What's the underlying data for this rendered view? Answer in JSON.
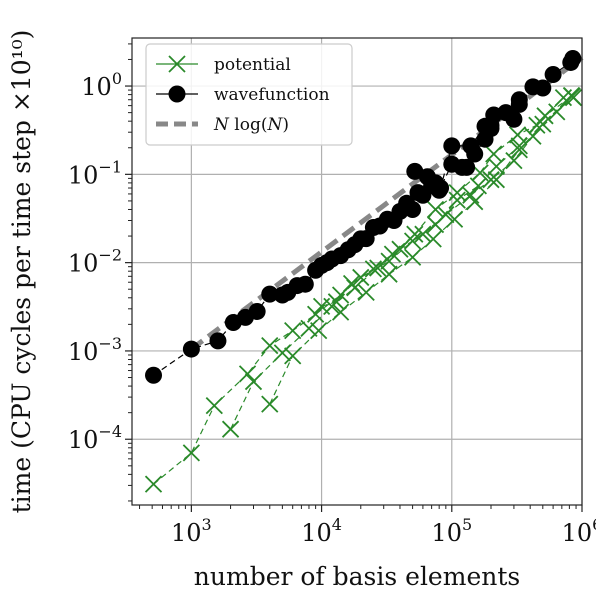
{
  "chart_data": {
    "type": "scatter",
    "xlabel": "number of basis elements",
    "ylabel": "time (CPU cycles per time step ×10¹⁰)",
    "x_scale": "log",
    "y_scale": "log",
    "xlim": [
      350,
      1000000
    ],
    "ylim": [
      1.8e-05,
      3.5
    ],
    "grid": true,
    "legend_position": "top-left",
    "x_ticks": [
      {
        "value": 1000,
        "base": "10",
        "exp": "3"
      },
      {
        "value": 10000,
        "base": "10",
        "exp": "4"
      },
      {
        "value": 100000,
        "base": "10",
        "exp": "5"
      },
      {
        "value": 1000000,
        "base": "10",
        "exp": "6"
      }
    ],
    "y_ticks": [
      {
        "value": 0.0001,
        "base": "10",
        "exp": "−4"
      },
      {
        "value": 0.001,
        "base": "10",
        "exp": "−3"
      },
      {
        "value": 0.01,
        "base": "10",
        "exp": "−2"
      },
      {
        "value": 0.1,
        "base": "10",
        "exp": "−1"
      },
      {
        "value": 1,
        "base": "10",
        "exp": "0"
      }
    ],
    "colors": {
      "potential": "#2a8a2a",
      "wavefunction": "#000000",
      "nlogn": "#888888",
      "grid": "#b0b0b0"
    },
    "series": [
      {
        "name": "potential",
        "marker": "x",
        "line": "dashed",
        "chains": [
          [
            [
              512,
              3.1e-05
            ],
            [
              1000,
              7e-05
            ],
            [
              1500,
              0.00024
            ],
            [
              2700,
              0.00055
            ],
            [
              4000,
              0.00115
            ],
            [
              6000,
              0.0017
            ],
            [
              9000,
              0.0026
            ],
            [
              14000,
              0.0043
            ],
            [
              20000,
              0.0068
            ],
            [
              33000,
              0.0104
            ],
            [
              50000,
              0.0176
            ],
            [
              75000,
              0.027
            ],
            [
              110000,
              0.051
            ],
            [
              160000,
              0.074
            ],
            [
              220000,
              0.123
            ],
            [
              330000,
              0.21
            ],
            [
              520000,
              0.46
            ],
            [
              840000,
              0.77
            ]
          ],
          [
            [
              2000,
              0.00013
            ],
            [
              3000,
              0.00045
            ],
            [
              5000,
              0.00095
            ],
            [
              8000,
              0.0018
            ],
            [
              12000,
              0.0032
            ],
            [
              18000,
              0.0052
            ],
            [
              27000,
              0.0087
            ],
            [
              40000,
              0.0142
            ],
            [
              60000,
              0.021
            ],
            [
              90000,
              0.035
            ],
            [
              140000,
              0.058
            ],
            [
              200000,
              0.087
            ],
            [
              300000,
              0.143
            ],
            [
              420000,
              0.27
            ],
            [
              640000,
              0.51
            ],
            [
              860000,
              0.74
            ]
          ],
          [
            [
              4000,
              0.00025
            ],
            [
              6000,
              0.00088
            ],
            [
              9500,
              0.0017
            ],
            [
              14000,
              0.00275
            ],
            [
              22000,
              0.0046
            ],
            [
              33000,
              0.0074
            ],
            [
              50000,
              0.0115
            ],
            [
              72000,
              0.0185
            ],
            [
              105000,
              0.031
            ],
            [
              150000,
              0.049
            ],
            [
              220000,
              0.087
            ],
            [
              330000,
              0.19
            ],
            [
              500000,
              0.37
            ],
            [
              830000,
              0.78
            ]
          ],
          [
            [
              10000,
              0.0032
            ],
            [
              13000,
              0.0036
            ],
            [
              17000,
              0.0058
            ],
            [
              25000,
              0.0085
            ],
            [
              35000,
              0.0125
            ],
            [
              52000,
              0.021
            ],
            [
              75000,
              0.04
            ],
            [
              110000,
              0.062
            ],
            [
              165000,
              0.104
            ],
            [
              210000,
              0.17
            ],
            [
              320000,
              0.28
            ],
            [
              450000,
              0.36
            ],
            [
              720000,
              0.74
            ]
          ]
        ]
      },
      {
        "name": "wavefunction",
        "marker": "circle",
        "line": "dashed",
        "chains": [
          [
            [
              512,
              0.00053
            ],
            [
              1000,
              0.00105
            ],
            [
              1600,
              0.0013
            ],
            [
              2100,
              0.0021
            ],
            [
              2600,
              0.0024
            ],
            [
              3200,
              0.0028
            ],
            [
              4000,
              0.0044
            ],
            [
              5000,
              0.0043
            ],
            [
              5500,
              0.0046
            ],
            [
              6500,
              0.0055
            ],
            [
              7500,
              0.0057
            ],
            [
              9000,
              0.0082
            ],
            [
              10000,
              0.0093
            ],
            [
              11000,
              0.01
            ],
            [
              12000,
              0.011
            ],
            [
              14000,
              0.012
            ],
            [
              16000,
              0.014
            ],
            [
              18000,
              0.016
            ],
            [
              20000,
              0.0186
            ],
            [
              22000,
              0.0187
            ],
            [
              25000,
              0.025
            ],
            [
              28000,
              0.026
            ],
            [
              32000,
              0.031
            ],
            [
              36000,
              0.03
            ],
            [
              40000,
              0.038
            ],
            [
              45000,
              0.047
            ],
            [
              50000,
              0.04
            ],
            [
              55000,
              0.062
            ],
            [
              60000,
              0.058
            ],
            [
              70000,
              0.074
            ],
            [
              80000,
              0.066
            ],
            [
              100000,
              0.13
            ],
            [
              120000,
              0.12
            ],
            [
              130000,
              0.12
            ],
            [
              150000,
              0.17
            ],
            [
              180000,
              0.25
            ],
            [
              200000,
              0.33
            ],
            [
              210000,
              0.47
            ],
            [
              300000,
              0.42
            ],
            [
              330000,
              0.62
            ],
            [
              420000,
              0.98
            ],
            [
              500000,
              0.95
            ],
            [
              600000,
              1.35
            ],
            [
              820000,
              1.85
            ],
            [
              850000,
              2.05
            ]
          ],
          [
            [
              52000,
              0.108
            ],
            [
              65000,
              0.094
            ],
            [
              75000,
              0.08
            ],
            [
              82000,
              0.07
            ],
            [
              100000,
              0.21
            ],
            [
              140000,
              0.21
            ],
            [
              180000,
              0.35
            ],
            [
              200000,
              0.36
            ],
            [
              260000,
              0.5
            ],
            [
              330000,
              0.7
            ]
          ]
        ]
      },
      {
        "name": "N log(N)",
        "marker": "none",
        "line": "thick-dashed",
        "points": [
          [
            1000,
            0.00105
          ],
          [
            1000000,
            2.1
          ]
        ]
      }
    ]
  },
  "legend": {
    "potential": "potential",
    "wavefunction": "wavefunction",
    "nlogn_prefix": "N",
    "nlogn_suffix": " log(",
    "nlogn_arg": "N",
    "nlogn_close": ")"
  }
}
